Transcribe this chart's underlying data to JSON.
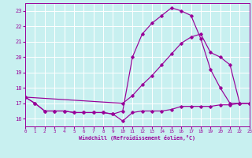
{
  "xlabel": "Windchill (Refroidissement éolien,°C)",
  "bg_color": "#c8f0f0",
  "grid_color": "#ffffff",
  "line_color": "#990099",
  "xlim": [
    0,
    23
  ],
  "ylim": [
    15.5,
    23.5
  ],
  "yticks": [
    16,
    17,
    18,
    19,
    20,
    21,
    22,
    23
  ],
  "xticks": [
    0,
    1,
    2,
    3,
    4,
    5,
    6,
    7,
    8,
    9,
    10,
    11,
    12,
    13,
    14,
    15,
    16,
    17,
    18,
    19,
    20,
    21,
    22,
    23
  ],
  "curve_arch_x": [
    0,
    1,
    2,
    3,
    4,
    5,
    6,
    7,
    8,
    9,
    10,
    11,
    12,
    13,
    14,
    15,
    16,
    17,
    18,
    19,
    20,
    21,
    22,
    23
  ],
  "curve_arch_y": [
    17.4,
    17.0,
    16.5,
    16.5,
    16.5,
    16.4,
    16.4,
    16.4,
    16.4,
    16.3,
    16.5,
    20.0,
    21.5,
    22.2,
    22.7,
    23.2,
    23.0,
    22.7,
    21.2,
    19.2,
    18.0,
    17.0,
    17.0,
    17.0
  ],
  "curve_flat_x": [
    0,
    1,
    2,
    3,
    4,
    5,
    6,
    7,
    8,
    9,
    10,
    11,
    12,
    13,
    14,
    15,
    16,
    17,
    18,
    19,
    20,
    21,
    22,
    23
  ],
  "curve_flat_y": [
    17.4,
    17.0,
    16.5,
    16.5,
    16.5,
    16.4,
    16.4,
    16.4,
    16.4,
    16.3,
    15.85,
    16.4,
    16.5,
    16.5,
    16.5,
    16.6,
    16.8,
    16.8,
    16.8,
    16.8,
    16.9,
    16.9,
    17.0,
    17.0
  ],
  "curve_diag_x": [
    0,
    10,
    11,
    12,
    13,
    14,
    15,
    16,
    17,
    18,
    19,
    20,
    21,
    22,
    23
  ],
  "curve_diag_y": [
    17.4,
    17.0,
    17.5,
    18.2,
    18.8,
    19.5,
    20.2,
    20.9,
    21.3,
    21.5,
    20.3,
    20.0,
    19.5,
    17.0,
    17.0
  ]
}
